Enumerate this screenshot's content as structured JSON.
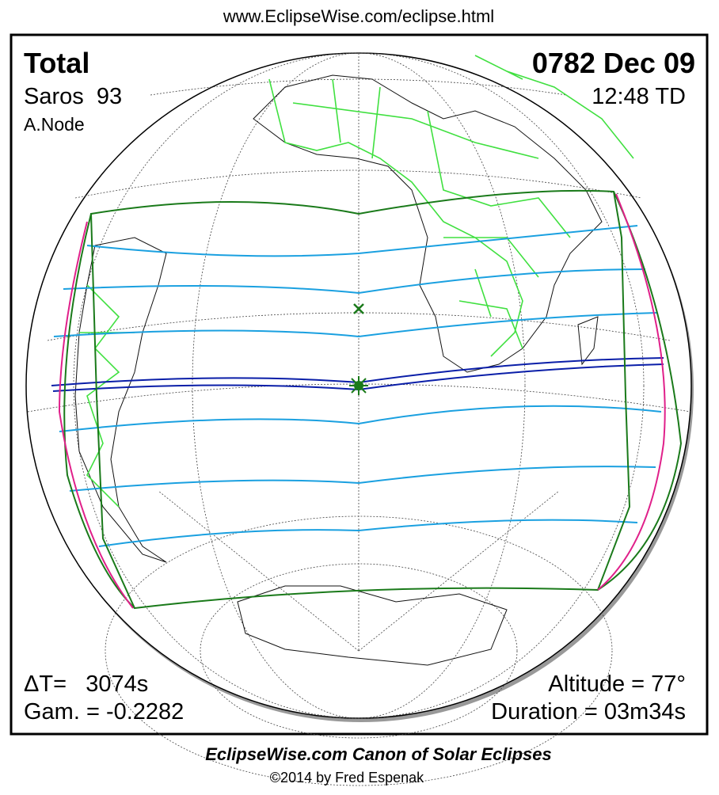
{
  "header": {
    "url": "www.EclipseWise.com/eclipse.html"
  },
  "panel": {
    "eclipse_type": "Total",
    "date": "0782 Dec 09",
    "saros": "Saros  93",
    "time": "12:48 TD",
    "node": "A.Node",
    "delta_t": "ΔT=   3074s",
    "gamma": "Gam. = -0.2282",
    "altitude": "Altitude = 77°",
    "duration": "Duration = 03m34s"
  },
  "footer": {
    "title": "EclipseWise.com Canon of Solar Eclipses",
    "copyright": "©2014 by Fred Espenak"
  }
}
